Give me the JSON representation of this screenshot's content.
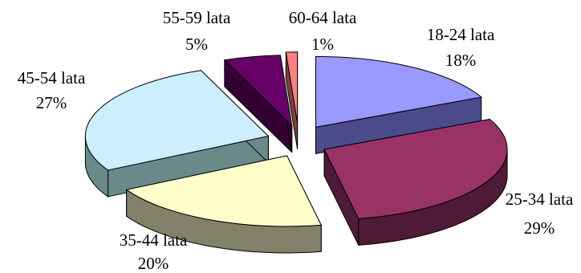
{
  "chart_data": {
    "type": "pie",
    "style": "3d-exploded",
    "title": "",
    "slices": [
      {
        "label": "18-24 lata",
        "value": 18,
        "value_label": "18%",
        "color": "#9999ff",
        "side_color": "#4b4b8c"
      },
      {
        "label": "25-34 lata",
        "value": 29,
        "value_label": "29%",
        "color": "#993366",
        "side_color": "#4f1a36"
      },
      {
        "label": "35-44 lata",
        "value": 20,
        "value_label": "20%",
        "color": "#ffffcc",
        "side_color": "#82826a"
      },
      {
        "label": "45-54 lata",
        "value": 27,
        "value_label": "27%",
        "color": "#cceeff",
        "side_color": "#6a8a8a"
      },
      {
        "label": "55-59 lata",
        "value": 5,
        "value_label": "5%",
        "color": "#660066",
        "side_color": "#330033"
      },
      {
        "label": "60-64 lata",
        "value": 1,
        "value_label": "1%",
        "color": "#ff8080",
        "side_color": "#804040"
      }
    ]
  }
}
